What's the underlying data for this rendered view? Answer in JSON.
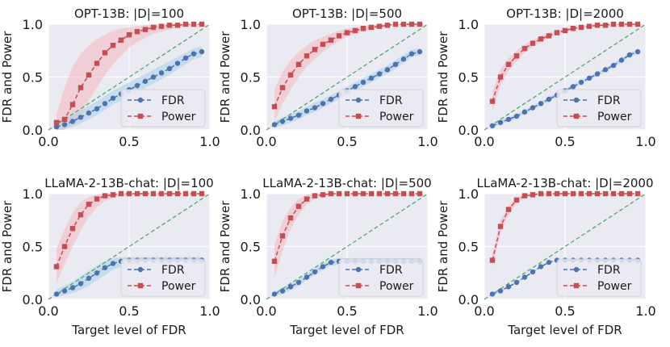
{
  "chart_data": {
    "type": "line",
    "shared": {
      "x": [
        0.05,
        0.1,
        0.15,
        0.2,
        0.25,
        0.3,
        0.35,
        0.4,
        0.45,
        0.5,
        0.55,
        0.6,
        0.65,
        0.7,
        0.75,
        0.8,
        0.85,
        0.9,
        0.95
      ],
      "xlim": [
        0,
        1.0
      ],
      "ylim": [
        0,
        1.0
      ],
      "xticks": [
        "0.0",
        "0.5",
        "1.0"
      ],
      "yticks": [
        "0.0",
        "0.5",
        "1.0"
      ],
      "xlabel": "Target level of FDR",
      "ylabel": "FDR and Power",
      "legend": [
        "FDR",
        "Power"
      ],
      "legend_position": "lower-right",
      "reference_line": "y = x (dashed)",
      "colors": {
        "fdr": "#4c72b0",
        "fdr_band": "#a6cfe8",
        "power": "#c44e52",
        "power_band": "#f4b6c0",
        "reference": "#55a868",
        "plot_bg": "#eaeaf2",
        "grid": "#ffffff"
      }
    },
    "panels": [
      {
        "title": "OPT-13B: |D|=100",
        "fdr": [
          0.03,
          0.05,
          0.08,
          0.12,
          0.16,
          0.2,
          0.25,
          0.3,
          0.34,
          0.38,
          0.42,
          0.46,
          0.5,
          0.54,
          0.58,
          0.63,
          0.68,
          0.72,
          0.74
        ],
        "fdr_low": [
          0.0,
          0.01,
          0.03,
          0.06,
          0.1,
          0.14,
          0.19,
          0.24,
          0.28,
          0.32,
          0.36,
          0.4,
          0.44,
          0.48,
          0.52,
          0.57,
          0.62,
          0.67,
          0.69
        ],
        "fdr_high": [
          0.06,
          0.1,
          0.14,
          0.18,
          0.23,
          0.27,
          0.32,
          0.37,
          0.41,
          0.45,
          0.49,
          0.53,
          0.57,
          0.61,
          0.65,
          0.69,
          0.73,
          0.77,
          0.79
        ],
        "power": [
          0.07,
          0.1,
          0.24,
          0.4,
          0.52,
          0.63,
          0.73,
          0.8,
          0.85,
          0.9,
          0.93,
          0.95,
          0.97,
          0.98,
          0.99,
          0.99,
          1.0,
          1.0,
          1.0
        ],
        "power_low": [
          0.0,
          0.0,
          0.05,
          0.15,
          0.28,
          0.4,
          0.52,
          0.62,
          0.7,
          0.78,
          0.83,
          0.87,
          0.91,
          0.93,
          0.95,
          0.97,
          0.98,
          0.99,
          0.99
        ],
        "power_high": [
          0.15,
          0.4,
          0.6,
          0.72,
          0.8,
          0.86,
          0.9,
          0.94,
          0.96,
          0.97,
          0.98,
          0.99,
          1.0,
          1.0,
          1.0,
          1.0,
          1.0,
          1.0,
          1.0
        ]
      },
      {
        "title": "OPT-13B: |D|=500",
        "fdr": [
          0.05,
          0.08,
          0.11,
          0.14,
          0.18,
          0.21,
          0.25,
          0.29,
          0.33,
          0.37,
          0.41,
          0.45,
          0.49,
          0.53,
          0.57,
          0.62,
          0.67,
          0.72,
          0.74
        ],
        "fdr_low": [
          0.02,
          0.04,
          0.07,
          0.1,
          0.14,
          0.17,
          0.21,
          0.25,
          0.29,
          0.33,
          0.37,
          0.41,
          0.45,
          0.49,
          0.53,
          0.58,
          0.63,
          0.69,
          0.71
        ],
        "fdr_high": [
          0.08,
          0.12,
          0.15,
          0.18,
          0.22,
          0.26,
          0.29,
          0.33,
          0.37,
          0.41,
          0.45,
          0.49,
          0.53,
          0.57,
          0.61,
          0.66,
          0.71,
          0.76,
          0.77
        ],
        "power": [
          0.22,
          0.4,
          0.52,
          0.62,
          0.7,
          0.76,
          0.81,
          0.85,
          0.89,
          0.92,
          0.94,
          0.96,
          0.97,
          0.98,
          0.99,
          1.0,
          1.0,
          1.0,
          1.0
        ],
        "power_low": [
          0.08,
          0.25,
          0.38,
          0.5,
          0.6,
          0.67,
          0.74,
          0.79,
          0.84,
          0.88,
          0.91,
          0.93,
          0.95,
          0.97,
          0.98,
          0.99,
          0.99,
          1.0,
          1.0
        ],
        "power_high": [
          0.38,
          0.55,
          0.66,
          0.74,
          0.8,
          0.85,
          0.88,
          0.91,
          0.94,
          0.96,
          0.97,
          0.98,
          0.99,
          1.0,
          1.0,
          1.0,
          1.0,
          1.0,
          1.0
        ]
      },
      {
        "title": "OPT-13B: |D|=2000",
        "fdr": [
          0.04,
          0.07,
          0.1,
          0.13,
          0.17,
          0.21,
          0.25,
          0.29,
          0.33,
          0.37,
          0.41,
          0.45,
          0.49,
          0.53,
          0.57,
          0.61,
          0.66,
          0.71,
          0.74
        ],
        "fdr_low": [
          0.02,
          0.05,
          0.08,
          0.11,
          0.15,
          0.19,
          0.23,
          0.27,
          0.31,
          0.35,
          0.39,
          0.43,
          0.47,
          0.51,
          0.55,
          0.59,
          0.64,
          0.69,
          0.72
        ],
        "fdr_high": [
          0.06,
          0.09,
          0.12,
          0.15,
          0.19,
          0.23,
          0.27,
          0.31,
          0.35,
          0.39,
          0.43,
          0.47,
          0.51,
          0.55,
          0.59,
          0.63,
          0.68,
          0.73,
          0.76
        ],
        "power": [
          0.27,
          0.5,
          0.62,
          0.7,
          0.77,
          0.82,
          0.86,
          0.89,
          0.92,
          0.94,
          0.96,
          0.97,
          0.98,
          0.99,
          0.99,
          1.0,
          1.0,
          1.0,
          1.0
        ],
        "power_low": [
          0.18,
          0.42,
          0.56,
          0.65,
          0.73,
          0.79,
          0.83,
          0.87,
          0.9,
          0.93,
          0.95,
          0.96,
          0.97,
          0.98,
          0.99,
          0.99,
          1.0,
          1.0,
          1.0
        ],
        "power_high": [
          0.36,
          0.57,
          0.68,
          0.75,
          0.81,
          0.85,
          0.89,
          0.92,
          0.94,
          0.96,
          0.97,
          0.98,
          0.99,
          1.0,
          1.0,
          1.0,
          1.0,
          1.0,
          1.0
        ]
      },
      {
        "title": "LLaMA-2-13B-chat: |D|=100",
        "fdr": [
          0.05,
          0.08,
          0.11,
          0.15,
          0.2,
          0.25,
          0.3,
          0.34,
          0.36,
          0.37,
          0.37,
          0.37,
          0.37,
          0.37,
          0.37,
          0.37,
          0.37,
          0.37,
          0.37
        ],
        "fdr_low": [
          0.02,
          0.04,
          0.06,
          0.09,
          0.13,
          0.18,
          0.23,
          0.28,
          0.31,
          0.33,
          0.34,
          0.34,
          0.34,
          0.34,
          0.34,
          0.34,
          0.34,
          0.34,
          0.34
        ],
        "fdr_high": [
          0.09,
          0.13,
          0.17,
          0.22,
          0.27,
          0.32,
          0.36,
          0.39,
          0.4,
          0.4,
          0.4,
          0.4,
          0.4,
          0.4,
          0.4,
          0.4,
          0.4,
          0.4,
          0.4
        ],
        "power": [
          0.31,
          0.5,
          0.67,
          0.8,
          0.9,
          0.95,
          0.98,
          0.99,
          1.0,
          1.0,
          1.0,
          1.0,
          1.0,
          1.0,
          1.0,
          1.0,
          1.0,
          1.0,
          1.0
        ],
        "power_low": [
          0.15,
          0.33,
          0.5,
          0.65,
          0.78,
          0.87,
          0.93,
          0.96,
          0.98,
          0.99,
          1.0,
          1.0,
          1.0,
          1.0,
          1.0,
          1.0,
          1.0,
          1.0,
          1.0
        ],
        "power_high": [
          0.48,
          0.66,
          0.82,
          0.92,
          0.97,
          0.99,
          1.0,
          1.0,
          1.0,
          1.0,
          1.0,
          1.0,
          1.0,
          1.0,
          1.0,
          1.0,
          1.0,
          1.0,
          1.0
        ]
      },
      {
        "title": "LLaMA-2-13B-chat: |D|=500",
        "fdr": [
          0.05,
          0.08,
          0.12,
          0.16,
          0.21,
          0.26,
          0.31,
          0.35,
          0.36,
          0.36,
          0.36,
          0.36,
          0.36,
          0.36,
          0.36,
          0.36,
          0.36,
          0.36,
          0.36
        ],
        "fdr_low": [
          0.03,
          0.05,
          0.09,
          0.13,
          0.18,
          0.23,
          0.28,
          0.32,
          0.33,
          0.34,
          0.34,
          0.34,
          0.34,
          0.34,
          0.34,
          0.34,
          0.34,
          0.34,
          0.34
        ],
        "fdr_high": [
          0.07,
          0.11,
          0.15,
          0.19,
          0.24,
          0.29,
          0.34,
          0.38,
          0.39,
          0.39,
          0.39,
          0.39,
          0.39,
          0.39,
          0.39,
          0.39,
          0.39,
          0.39,
          0.39
        ],
        "power": [
          0.36,
          0.6,
          0.77,
          0.88,
          0.95,
          0.98,
          0.99,
          1.0,
          1.0,
          1.0,
          1.0,
          1.0,
          1.0,
          1.0,
          1.0,
          1.0,
          1.0,
          1.0,
          1.0
        ],
        "power_low": [
          0.2,
          0.46,
          0.66,
          0.8,
          0.9,
          0.95,
          0.98,
          0.99,
          1.0,
          1.0,
          1.0,
          1.0,
          1.0,
          1.0,
          1.0,
          1.0,
          1.0,
          1.0,
          1.0
        ],
        "power_high": [
          0.52,
          0.74,
          0.87,
          0.95,
          0.99,
          1.0,
          1.0,
          1.0,
          1.0,
          1.0,
          1.0,
          1.0,
          1.0,
          1.0,
          1.0,
          1.0,
          1.0,
          1.0,
          1.0
        ]
      },
      {
        "title": "LLaMA-2-13B-chat: |D|=2000",
        "fdr": [
          0.05,
          0.08,
          0.12,
          0.16,
          0.21,
          0.26,
          0.31,
          0.35,
          0.37,
          0.37,
          0.37,
          0.37,
          0.37,
          0.37,
          0.37,
          0.37,
          0.37,
          0.37,
          0.37
        ],
        "fdr_low": [
          0.04,
          0.07,
          0.11,
          0.15,
          0.2,
          0.25,
          0.3,
          0.34,
          0.36,
          0.36,
          0.36,
          0.36,
          0.36,
          0.36,
          0.36,
          0.36,
          0.36,
          0.36,
          0.36
        ],
        "fdr_high": [
          0.06,
          0.09,
          0.13,
          0.17,
          0.22,
          0.27,
          0.32,
          0.36,
          0.38,
          0.38,
          0.38,
          0.38,
          0.38,
          0.38,
          0.38,
          0.38,
          0.38,
          0.38,
          0.38
        ],
        "power": [
          0.37,
          0.69,
          0.85,
          0.94,
          0.98,
          0.99,
          1.0,
          1.0,
          1.0,
          1.0,
          1.0,
          1.0,
          1.0,
          1.0,
          1.0,
          1.0,
          1.0,
          1.0,
          1.0
        ],
        "power_low": [
          0.3,
          0.63,
          0.8,
          0.91,
          0.96,
          0.98,
          0.99,
          1.0,
          1.0,
          1.0,
          1.0,
          1.0,
          1.0,
          1.0,
          1.0,
          1.0,
          1.0,
          1.0,
          1.0
        ],
        "power_high": [
          0.44,
          0.75,
          0.89,
          0.96,
          0.99,
          1.0,
          1.0,
          1.0,
          1.0,
          1.0,
          1.0,
          1.0,
          1.0,
          1.0,
          1.0,
          1.0,
          1.0,
          1.0,
          1.0
        ]
      }
    ]
  }
}
